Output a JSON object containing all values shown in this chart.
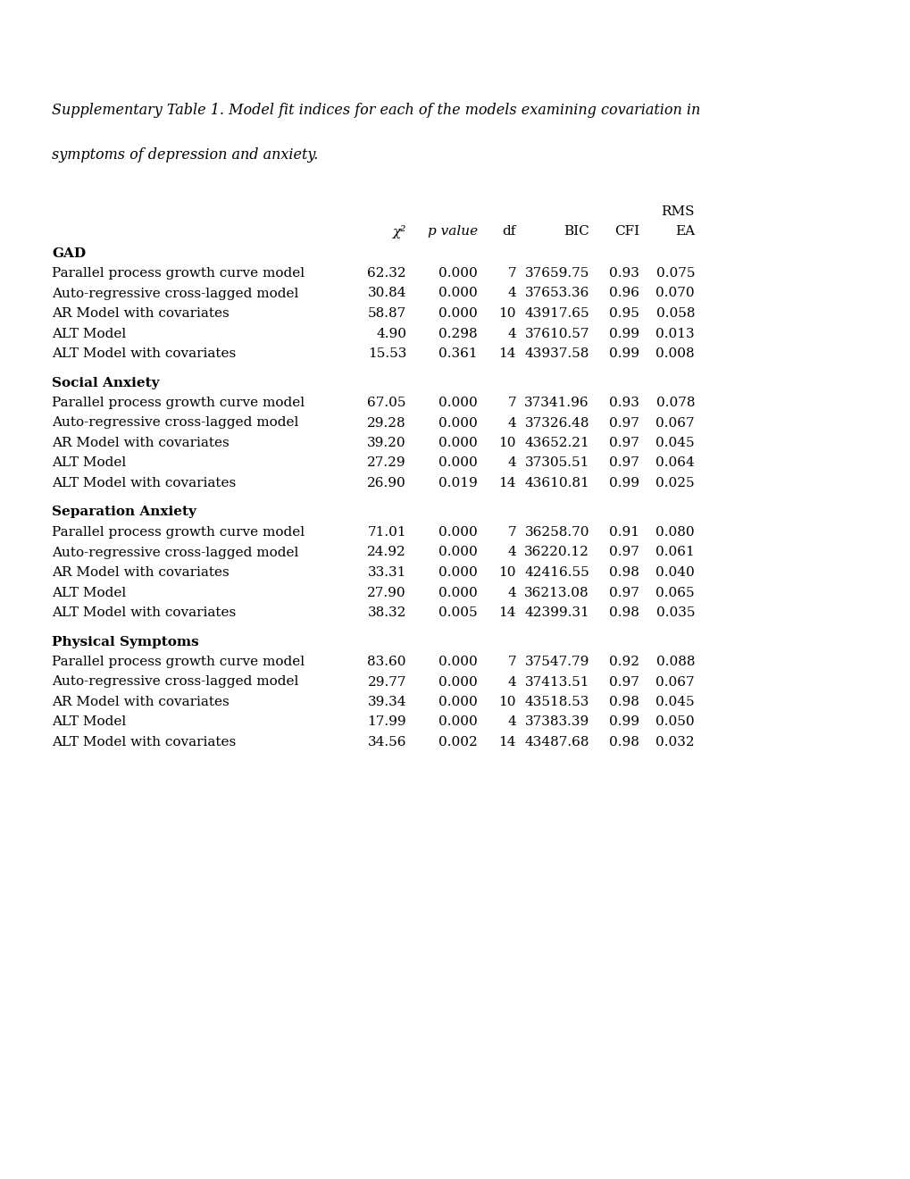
{
  "title_line1": "Supplementary Table 1. Model fit indices for each of the models examining covariation in",
  "title_line2": "symptoms of depression and anxiety.",
  "sections": [
    {
      "header": "GAD",
      "rows": [
        [
          "Parallel process growth curve model",
          "62.32",
          "0.000",
          "7",
          "37659.75",
          "0.93",
          "0.075"
        ],
        [
          "Auto-regressive cross-lagged model",
          "30.84",
          "0.000",
          "4",
          "37653.36",
          "0.96",
          "0.070"
        ],
        [
          "AR Model with covariates",
          "58.87",
          "0.000",
          "10",
          "43917.65",
          "0.95",
          "0.058"
        ],
        [
          "ALT Model",
          "4.90",
          "0.298",
          "4",
          "37610.57",
          "0.99",
          "0.013"
        ],
        [
          "ALT Model with covariates",
          "15.53",
          "0.361",
          "14",
          "43937.58",
          "0.99",
          "0.008"
        ]
      ]
    },
    {
      "header": "Social Anxiety",
      "rows": [
        [
          "Parallel process growth curve model",
          "67.05",
          "0.000",
          "7",
          "37341.96",
          "0.93",
          "0.078"
        ],
        [
          "Auto-regressive cross-lagged model",
          "29.28",
          "0.000",
          "4",
          "37326.48",
          "0.97",
          "0.067"
        ],
        [
          "AR Model with covariates",
          "39.20",
          "0.000",
          "10",
          "43652.21",
          "0.97",
          "0.045"
        ],
        [
          "ALT Model",
          "27.29",
          "0.000",
          "4",
          "37305.51",
          "0.97",
          "0.064"
        ],
        [
          "ALT Model with covariates",
          "26.90",
          "0.019",
          "14",
          "43610.81",
          "0.99",
          "0.025"
        ]
      ]
    },
    {
      "header": "Separation Anxiety",
      "rows": [
        [
          "Parallel process growth curve model",
          "71.01",
          "0.000",
          "7",
          "36258.70",
          "0.91",
          "0.080"
        ],
        [
          "Auto-regressive cross-lagged model",
          "24.92",
          "0.000",
          "4",
          "36220.12",
          "0.97",
          "0.061"
        ],
        [
          "AR Model with covariates",
          "33.31",
          "0.000",
          "10",
          "42416.55",
          "0.98",
          "0.040"
        ],
        [
          "ALT Model",
          "27.90",
          "0.000",
          "4",
          "36213.08",
          "0.97",
          "0.065"
        ],
        [
          "ALT Model with covariates",
          "38.32",
          "0.005",
          "14",
          "42399.31",
          "0.98",
          "0.035"
        ]
      ]
    },
    {
      "header": "Physical Symptoms",
      "rows": [
        [
          "Parallel process growth curve model",
          "83.60",
          "0.000",
          "7",
          "37547.79",
          "0.92",
          "0.088"
        ],
        [
          "Auto-regressive cross-lagged model",
          "29.77",
          "0.000",
          "4",
          "37413.51",
          "0.97",
          "0.067"
        ],
        [
          "AR Model with covariates",
          "39.34",
          "0.000",
          "10",
          "43518.53",
          "0.98",
          "0.045"
        ],
        [
          "ALT Model",
          "17.99",
          "0.000",
          "4",
          "37383.39",
          "0.99",
          "0.050"
        ],
        [
          "ALT Model with covariates",
          "34.56",
          "0.002",
          "14",
          "43487.68",
          "0.98",
          "0.032"
        ]
      ]
    }
  ],
  "background_color": "#ffffff",
  "text_color": "#000000",
  "font_size": 11.0,
  "title_font_size": 11.5
}
